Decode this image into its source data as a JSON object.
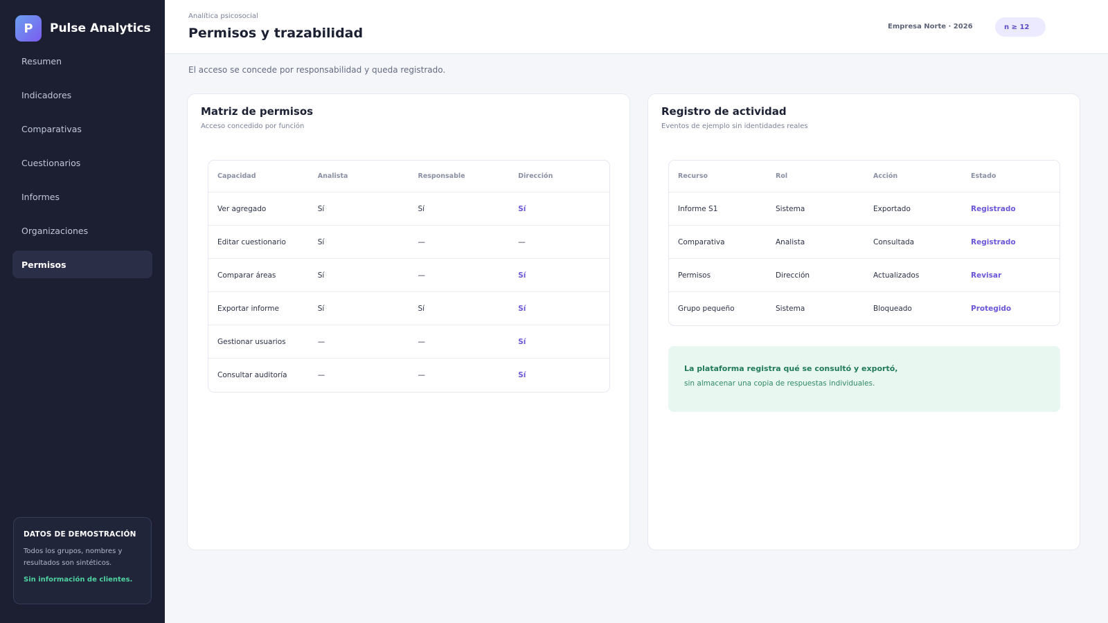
{
  "brand": {
    "logo_letter": "P",
    "name": "Pulse Analytics",
    "gradient_colors": [
      "#6aa0f0",
      "#7b5cf0"
    ]
  },
  "sidebar": {
    "items": [
      {
        "label": "Resumen",
        "active": false
      },
      {
        "label": "Indicadores",
        "active": false
      },
      {
        "label": "Comparativas",
        "active": false
      },
      {
        "label": "Cuestionarios",
        "active": false
      },
      {
        "label": "Informes",
        "active": false
      },
      {
        "label": "Organizaciones",
        "active": false
      },
      {
        "label": "Permisos",
        "active": true
      }
    ],
    "demo": {
      "title": "DATOS DE DEMOSTRACIÓN",
      "text": "Todos los grupos, nombres y resultados son sintéticos.",
      "note": "Sin información de clientes."
    }
  },
  "header": {
    "eyebrow": "Analítica psicosocial",
    "title": "Permisos y trazabilidad",
    "org": "Empresa Norte · 2026",
    "n_badge": "n ≥ 12"
  },
  "intro": "El acceso se concede por responsabilidad y queda registrado.",
  "permissions": {
    "title": "Matriz de permisos",
    "subtitle": "Acceso concedido por función",
    "columns": [
      "Capacidad",
      "Analista",
      "Responsable",
      "Dirección"
    ],
    "rows": [
      [
        "Ver agregado",
        "Sí",
        "Sí",
        "Sí"
      ],
      [
        "Editar cuestionario",
        "Sí",
        "—",
        "—"
      ],
      [
        "Comparar áreas",
        "Sí",
        "—",
        "Sí"
      ],
      [
        "Exportar informe",
        "Sí",
        "Sí",
        "Sí"
      ],
      [
        "Gestionar usuarios",
        "—",
        "—",
        "Sí"
      ],
      [
        "Consultar auditoría",
        "—",
        "—",
        "Sí"
      ]
    ]
  },
  "activity": {
    "title": "Registro de actividad",
    "subtitle": "Eventos de ejemplo sin identidades reales",
    "columns": [
      "Recurso",
      "Rol",
      "Acción",
      "Estado"
    ],
    "rows": [
      [
        "Informe S1",
        "Sistema",
        "Exportado",
        "Registrado"
      ],
      [
        "Comparativa",
        "Analista",
        "Consultada",
        "Registrado"
      ],
      [
        "Permisos",
        "Dirección",
        "Actualizados",
        "Revisar"
      ],
      [
        "Grupo pequeño",
        "Sistema",
        "Bloqueado",
        "Protegido"
      ]
    ],
    "callout": {
      "strong": "La plataforma registra qué se consultó y exportó,",
      "text": "sin almacenar una copia de respuestas individuales."
    }
  },
  "colors": {
    "sidebar_bg": "#1b1f31",
    "accent": "#6b55d8",
    "success": "#1f7a58",
    "demo_note": "#4fd3a0"
  }
}
